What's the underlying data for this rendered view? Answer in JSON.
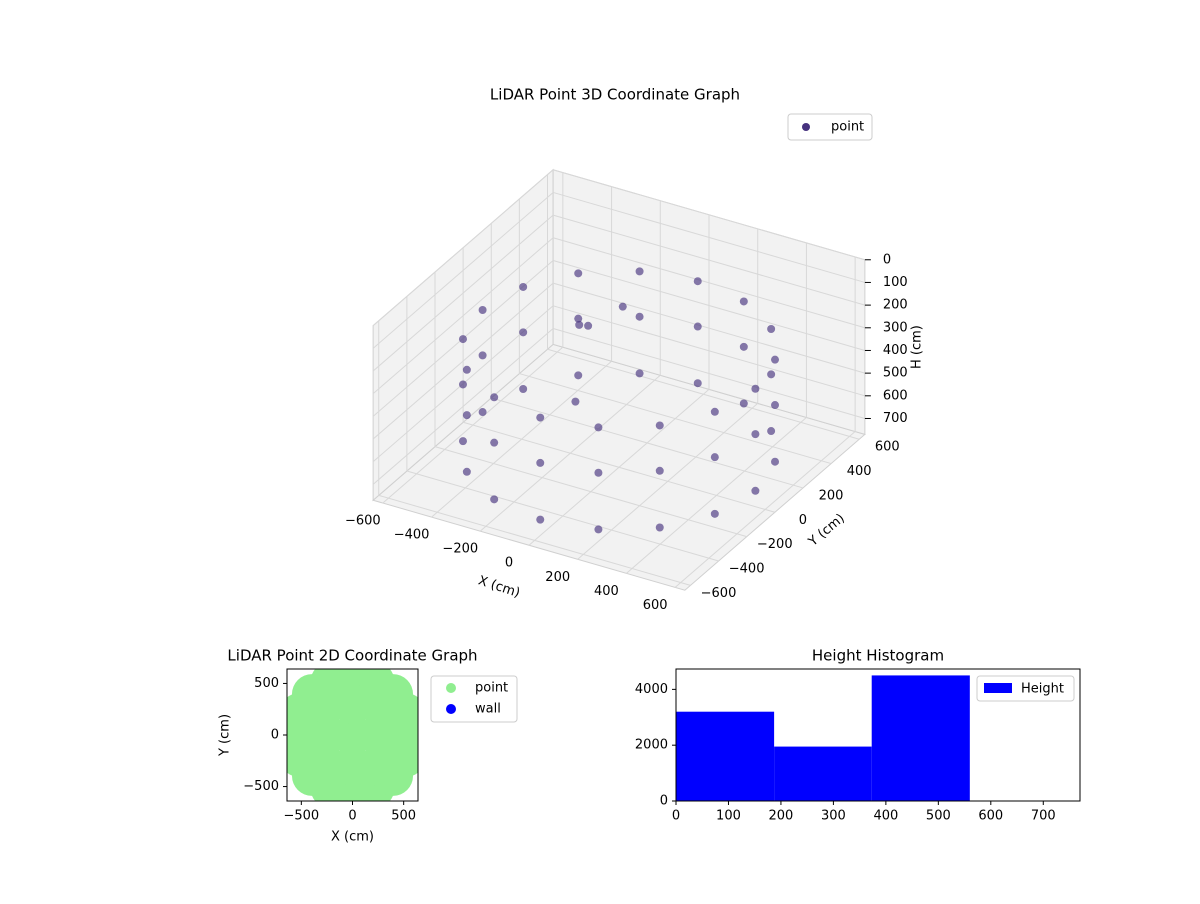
{
  "chart_data": [
    {
      "type": "scatter3d",
      "title": "LiDAR Point 3D Coordinate Graph",
      "xlabel": "X (cm)",
      "ylabel": "Y (cm)",
      "zlabel": "H (cm)",
      "xlim": [
        -640,
        640
      ],
      "ylim": [
        -640,
        640
      ],
      "zlim": [
        770,
        0
      ],
      "xticks": [
        {
          "value": -600,
          "label": "−600"
        },
        {
          "value": -400,
          "label": "−400"
        },
        {
          "value": -200,
          "label": "−200"
        },
        0,
        200,
        400,
        600
      ],
      "yticks": [
        {
          "value": -600,
          "label": "−600"
        },
        {
          "value": -400,
          "label": "−400"
        },
        {
          "value": -200,
          "label": "−200"
        },
        0,
        200,
        400,
        600
      ],
      "zticks": [
        0,
        100,
        200,
        300,
        400,
        500,
        600,
        700
      ],
      "grid": true,
      "legend": "upper right",
      "series": [
        {
          "name": "point",
          "color": "#46327e",
          "x": [
            560,
            517,
            396,
            214,
            0,
            -214,
            -396,
            -517,
            -560,
            -517,
            -396,
            -214,
            0,
            214,
            396,
            517,
            560,
            517,
            396,
            214,
            0,
            -214,
            -396,
            -517,
            -560,
            -517,
            -396,
            -214,
            0,
            214,
            396,
            517,
            560,
            517,
            396,
            214,
            0,
            -214,
            -396,
            -517,
            -560,
            -517,
            -396,
            -214,
            0,
            214,
            396,
            517,
            -250,
            -100,
            -300,
            -150
          ],
          "y": [
            0,
            214,
            396,
            517,
            560,
            517,
            396,
            214,
            0,
            -214,
            -396,
            -517,
            -560,
            -517,
            -396,
            -214,
            0,
            214,
            396,
            517,
            560,
            517,
            396,
            214,
            0,
            -214,
            -396,
            -517,
            -560,
            -517,
            -396,
            -214,
            0,
            214,
            396,
            517,
            560,
            517,
            396,
            214,
            0,
            -214,
            -396,
            -517,
            -560,
            -517,
            -396,
            -214,
            150,
            200,
            300,
            -50
          ],
          "z": [
            250,
            250,
            250,
            250,
            250,
            250,
            250,
            250,
            250,
            250,
            250,
            250,
            250,
            250,
            250,
            250,
            450,
            450,
            450,
            450,
            450,
            450,
            450,
            450,
            450,
            450,
            450,
            450,
            450,
            450,
            450,
            450,
            700,
            700,
            700,
            700,
            700,
            700,
            700,
            700,
            700,
            700,
            700,
            700,
            700,
            700,
            700,
            700,
            300,
            200,
            400,
            500
          ]
        }
      ]
    },
    {
      "type": "scatter",
      "title": "LiDAR Point 2D Coordinate Graph",
      "xlabel": "X (cm)",
      "ylabel": "Y (cm)",
      "xlim": [
        -640,
        640
      ],
      "ylim": [
        -640,
        640
      ],
      "xticks": [
        {
          "value": -500,
          "label": "−500"
        },
        0,
        500
      ],
      "yticks": [
        {
          "value": -500,
          "label": "−500"
        },
        0,
        500
      ],
      "legend": "outside upper right",
      "series": [
        {
          "name": "point",
          "color": "#90ee90",
          "x": [
            560,
            517,
            396,
            214,
            0,
            -214,
            -396,
            -517,
            -560,
            -517,
            -396,
            -214,
            0,
            214,
            396,
            517,
            0,
            250,
            -250,
            0,
            0,
            250,
            250,
            -250,
            -250
          ],
          "y": [
            0,
            214,
            396,
            517,
            560,
            517,
            396,
            214,
            0,
            -214,
            -396,
            -517,
            -560,
            -517,
            -396,
            -214,
            0,
            0,
            0,
            300,
            -300,
            300,
            -300,
            300,
            -300
          ]
        },
        {
          "name": "wall",
          "color": "#0000ff",
          "x": [],
          "y": []
        }
      ]
    },
    {
      "type": "histogram",
      "title": "Height Histogram",
      "bins": [
        0,
        187,
        373,
        560
      ],
      "counts": [
        3200,
        1950,
        4500
      ],
      "series_name": "Height",
      "color": "#0000ff",
      "xlim": [
        0,
        770
      ],
      "ylim": [
        0,
        4730
      ],
      "xticks": [
        0,
        100,
        200,
        300,
        400,
        500,
        600,
        700
      ],
      "yticks": [
        0,
        2000,
        4000
      ],
      "legend": "upper right"
    }
  ]
}
